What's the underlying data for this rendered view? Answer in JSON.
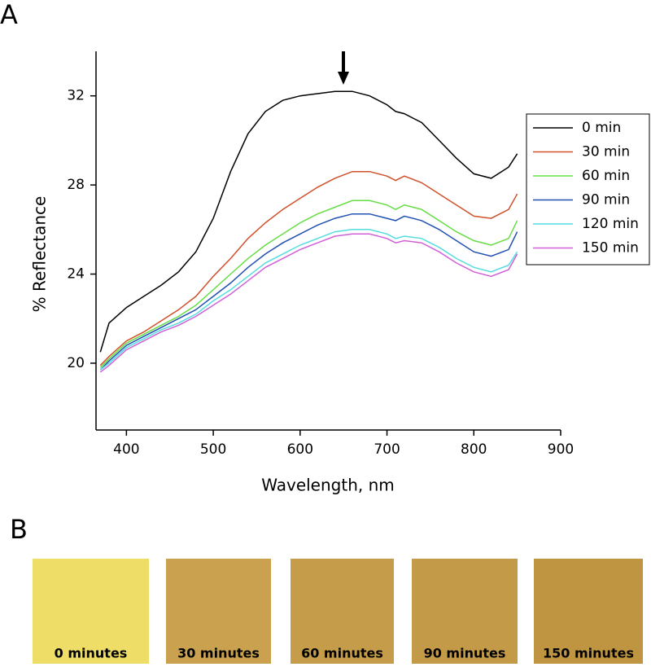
{
  "panel_labels": [
    "A",
    "B"
  ],
  "chart_data": {
    "type": "line",
    "xlabel": "Wavelength, nm",
    "ylabel": "% Reflectance",
    "x": [
      370,
      380,
      400,
      420,
      440,
      460,
      480,
      500,
      520,
      540,
      560,
      580,
      600,
      620,
      640,
      660,
      680,
      700,
      710,
      720,
      740,
      760,
      780,
      800,
      820,
      840,
      850
    ],
    "series": [
      {
        "name": "0 min",
        "color": "#000000",
        "values": [
          20.5,
          21.8,
          22.5,
          23.0,
          23.5,
          24.1,
          25.0,
          26.5,
          28.6,
          30.3,
          31.3,
          31.8,
          32.0,
          32.1,
          32.2,
          32.2,
          32.0,
          31.6,
          31.3,
          31.2,
          30.8,
          30.0,
          29.2,
          28.5,
          28.3,
          28.8,
          29.4
        ]
      },
      {
        "name": "30 min",
        "color": "#d0502a",
        "values": [
          19.9,
          20.3,
          21.0,
          21.4,
          21.9,
          22.4,
          23.0,
          23.9,
          24.7,
          25.6,
          26.3,
          26.9,
          27.4,
          27.9,
          28.3,
          28.6,
          28.6,
          28.4,
          28.2,
          28.4,
          28.1,
          27.6,
          27.1,
          26.6,
          26.5,
          26.9,
          27.6
        ]
      },
      {
        "name": "60 min",
        "color": "#66dd44",
        "values": [
          19.8,
          20.2,
          20.9,
          21.3,
          21.7,
          22.1,
          22.6,
          23.3,
          24.0,
          24.7,
          25.3,
          25.8,
          26.3,
          26.7,
          27.0,
          27.3,
          27.3,
          27.1,
          26.9,
          27.1,
          26.9,
          26.4,
          25.9,
          25.5,
          25.3,
          25.6,
          26.4
        ]
      },
      {
        "name": "90 min",
        "color": "#2050b0",
        "values": [
          19.7,
          20.1,
          20.8,
          21.2,
          21.6,
          22.0,
          22.4,
          23.0,
          23.6,
          24.3,
          24.9,
          25.4,
          25.8,
          26.2,
          26.5,
          26.7,
          26.7,
          26.5,
          26.4,
          26.6,
          26.4,
          26.0,
          25.5,
          25.0,
          24.8,
          25.1,
          25.9
        ]
      },
      {
        "name": "120 min",
        "color": "#55dde0",
        "values": [
          19.7,
          20.0,
          20.7,
          21.1,
          21.5,
          21.8,
          22.2,
          22.8,
          23.3,
          23.9,
          24.5,
          24.9,
          25.3,
          25.6,
          25.9,
          26.0,
          26.0,
          25.8,
          25.6,
          25.7,
          25.6,
          25.2,
          24.7,
          24.3,
          24.1,
          24.4,
          25.0
        ]
      },
      {
        "name": "150 min",
        "color": "#d060d8",
        "values": [
          19.6,
          19.9,
          20.6,
          21.0,
          21.4,
          21.7,
          22.1,
          22.6,
          23.1,
          23.7,
          24.3,
          24.7,
          25.1,
          25.4,
          25.7,
          25.8,
          25.8,
          25.6,
          25.4,
          25.5,
          25.4,
          25.0,
          24.5,
          24.1,
          23.9,
          24.2,
          24.9
        ]
      }
    ],
    "xlim": [
      365,
      900
    ],
    "xticks": [
      400,
      500,
      600,
      700,
      800,
      900
    ],
    "ylim": [
      17,
      34
    ],
    "yticks": [
      20,
      24,
      28,
      32
    ],
    "legend": "upper right"
  },
  "swatches": [
    {
      "label": "0 minutes",
      "color": "#eedd66"
    },
    {
      "label": "30 minutes",
      "color": "#caa24f"
    },
    {
      "label": "60 minutes",
      "color": "#c49c4a"
    },
    {
      "label": "90 minutes",
      "color": "#c39a48"
    },
    {
      "label": "150 minutes",
      "color": "#bf9542"
    }
  ]
}
